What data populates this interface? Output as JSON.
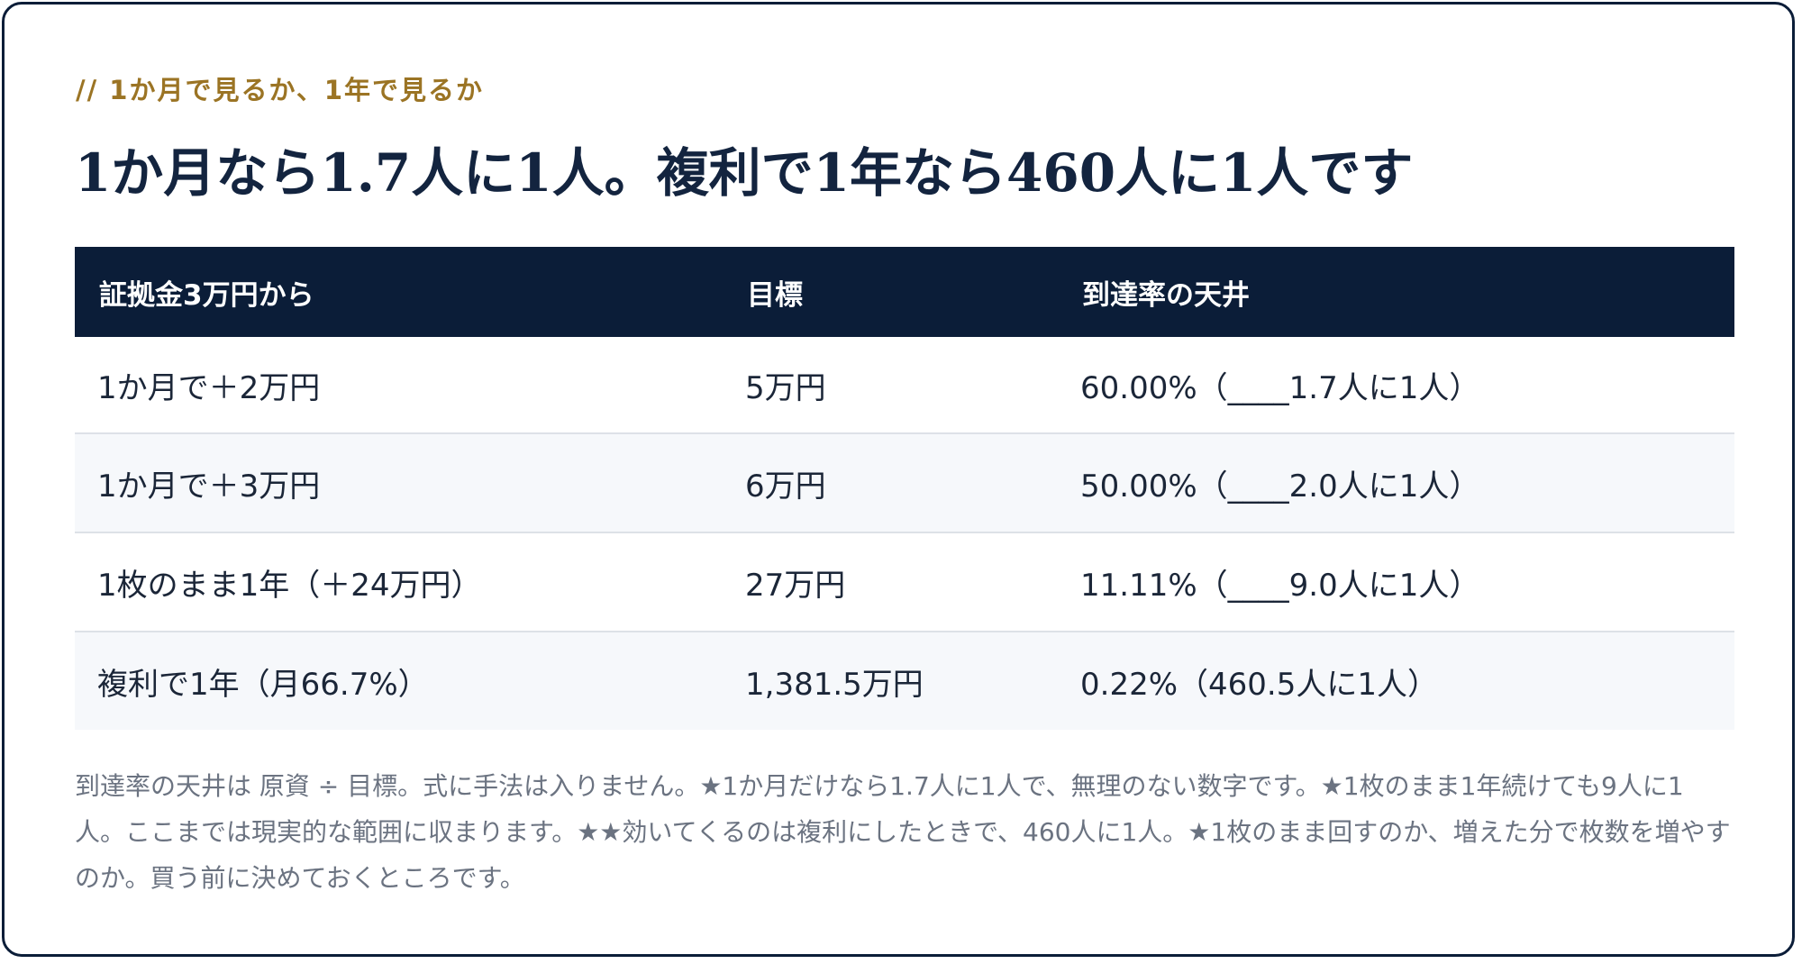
{
  "card": {
    "eyebrow": "// 1か月で見るか、1年で見るか",
    "headline": "1か月なら1.7人に1人。複利で1年なら460人に1人です"
  },
  "table": {
    "headers": [
      "証拠金3万円から",
      "目標",
      "到達率の天井"
    ],
    "rows": [
      [
        "1か月で＋2万円",
        "5万円",
        "60.00%（____1.7人に1人）"
      ],
      [
        "1か月で＋3万円",
        "6万円",
        "50.00%（____2.0人に1人）"
      ],
      [
        "1枚のまま1年（＋24万円）",
        "27万円",
        "11.11%（____9.0人に1人）"
      ],
      [
        "複利で1年（月66.7%）",
        "1,381.5万円",
        "0.22%（460.5人に1人）"
      ]
    ]
  },
  "note": "到達率の天井は 原資 ÷ 目標。式に手法は入りません。★1か月だけなら1.7人に1人で、無理のない数字です。★1枚のまま1年続けても9人に1人。ここまでは現実的な範囲に収まります。★★効いてくるのは複利にしたときで、460人に1人。★1枚のまま回すのか、増えた分で枚数を増やすのか。買う前に決めておくところです。",
  "colors": {
    "navy": "#0b1d38",
    "accent_gold": "#9b7424",
    "row_alt": "#f6f8fb",
    "note_text": "#6b7381"
  }
}
